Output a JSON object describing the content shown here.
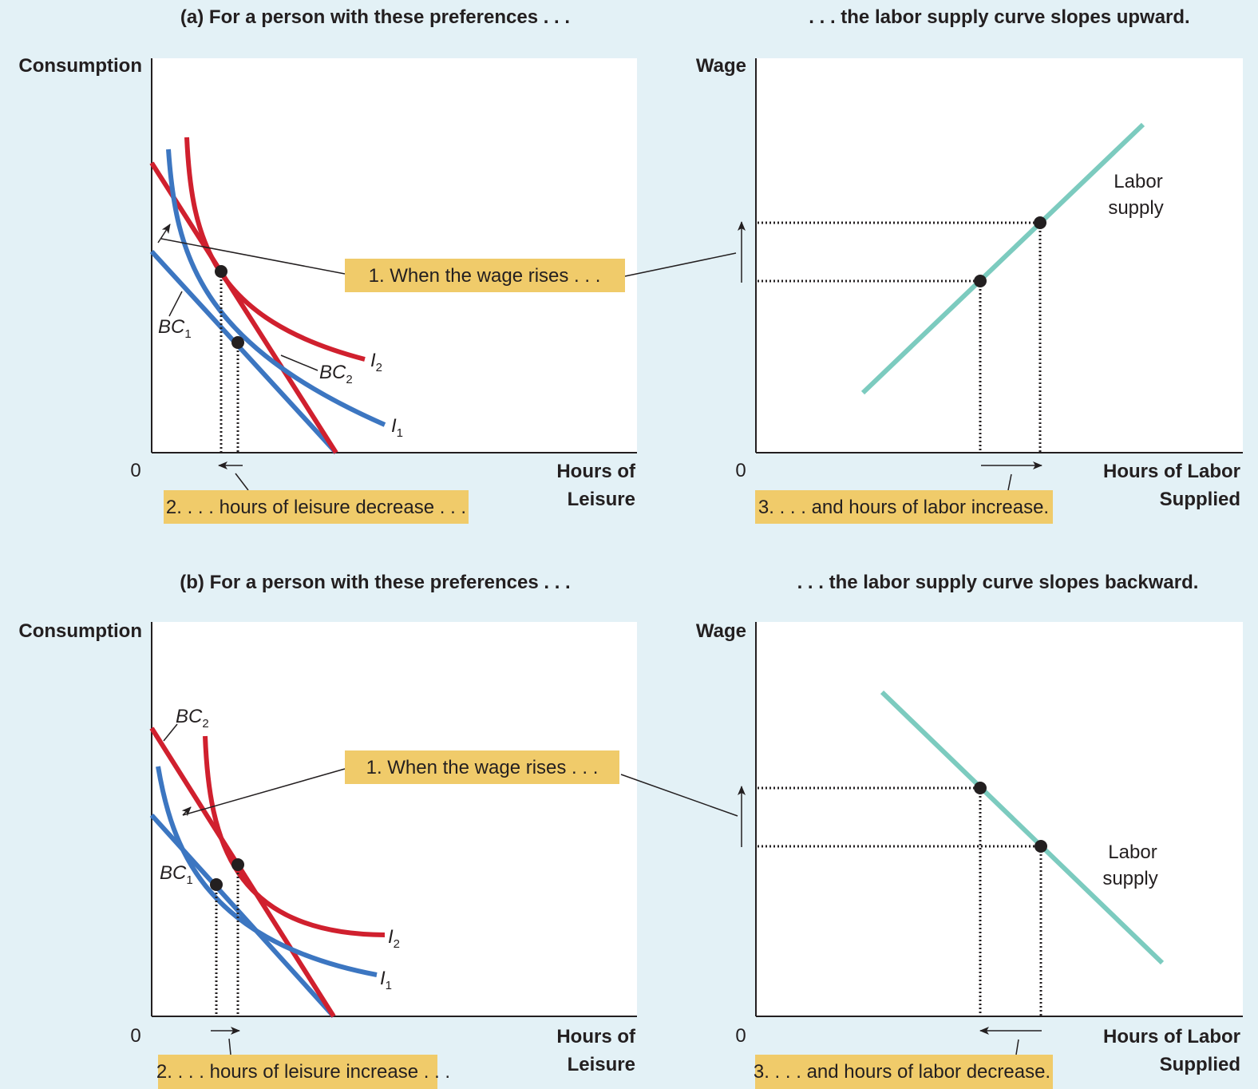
{
  "colors": {
    "background": "#e3f1f6",
    "plot_area": "#ffffff",
    "indifference": "#d0202e",
    "budget_constraint_new": "#d0202e",
    "budget_constraint_old": "#3c76c1",
    "labor_supply": "#7ccbbf",
    "callout_box": "#f0cb6a",
    "text": "#231f20"
  },
  "panel_a": {
    "left_title": "(a) For a person with these preferences . . .",
    "right_title": ". . . the labor supply curve slopes upward.",
    "consumption_label": "Consumption",
    "wage_label": "Wage",
    "zero_left": "0",
    "zero_right": "0",
    "leisure_label_line1": "Hours of",
    "leisure_label_line2": "Leisure",
    "labor_label_line1": "Hours of Labor",
    "labor_label_line2": "Supplied",
    "bc1": "BC",
    "bc1_sub": "1",
    "bc2": "BC",
    "bc2_sub": "2",
    "i1": "I",
    "i1_sub": "1",
    "i2": "I",
    "i2_sub": "2",
    "labor_supply_line1": "Labor",
    "labor_supply_line2": "supply",
    "callout_wage": "1. When the wage rises . . .",
    "callout_leisure": "2. . . . hours of leisure decrease . . .",
    "callout_labor": "3. . . . and hours of labor increase."
  },
  "panel_b": {
    "left_title": "(b) For a person with these preferences . . .",
    "right_title": ". . . the labor supply curve slopes backward.",
    "consumption_label": "Consumption",
    "wage_label": "Wage",
    "zero_left": "0",
    "zero_right": "0",
    "leisure_label_line1": "Hours of",
    "leisure_label_line2": "Leisure",
    "labor_label_line1": "Hours of Labor",
    "labor_label_line2": "Supplied",
    "bc1": "BC",
    "bc1_sub": "1",
    "bc2": "BC",
    "bc2_sub": "2",
    "i1": "I",
    "i1_sub": "1",
    "i2": "I",
    "i2_sub": "2",
    "labor_supply_line1": "Labor",
    "labor_supply_line2": "supply",
    "callout_wage": "1. When the wage rises . . .",
    "callout_leisure": "2. . . . hours of leisure increase . . .",
    "callout_labor": "3. . . . and hours of labor decrease."
  }
}
